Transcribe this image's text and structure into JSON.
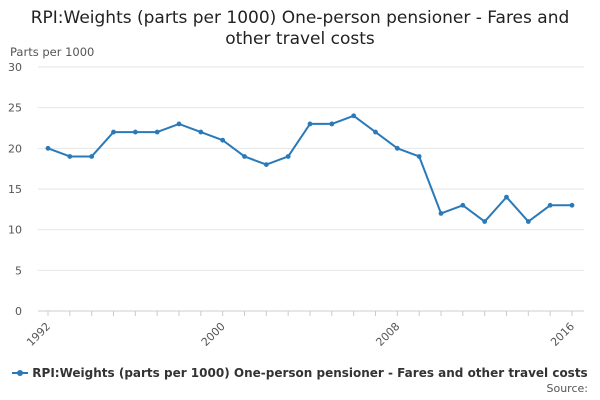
{
  "chart_data": {
    "type": "line",
    "title": "RPI:Weights (parts per 1000) One-person pensioner - Fares and other travel costs",
    "ylabel": "Parts per 1000",
    "xlabel": "",
    "x": [
      1992,
      1993,
      1994,
      1995,
      1996,
      1997,
      1998,
      1999,
      2000,
      2001,
      2002,
      2003,
      2004,
      2005,
      2006,
      2007,
      2008,
      2009,
      2010,
      2011,
      2012,
      2013,
      2014,
      2015,
      2016
    ],
    "x_ticks": [
      1992,
      2000,
      2008,
      2016
    ],
    "y_ticks": [
      0,
      5,
      10,
      15,
      20,
      25,
      30
    ],
    "ylim": [
      0,
      30
    ],
    "xlim": [
      1992,
      2016
    ],
    "grid": true,
    "legend_position": "bottom",
    "series": [
      {
        "name": "RPI:Weights (parts per 1000) One-person pensioner - Fares and other travel costs",
        "color": "#2a7ab9",
        "values": [
          20,
          19,
          19,
          22,
          22,
          22,
          23,
          22,
          21,
          19,
          18,
          19,
          23,
          23,
          24,
          22,
          20,
          19,
          12,
          13,
          11,
          14,
          11,
          13,
          13
        ]
      }
    ]
  },
  "source_label": "Source:"
}
